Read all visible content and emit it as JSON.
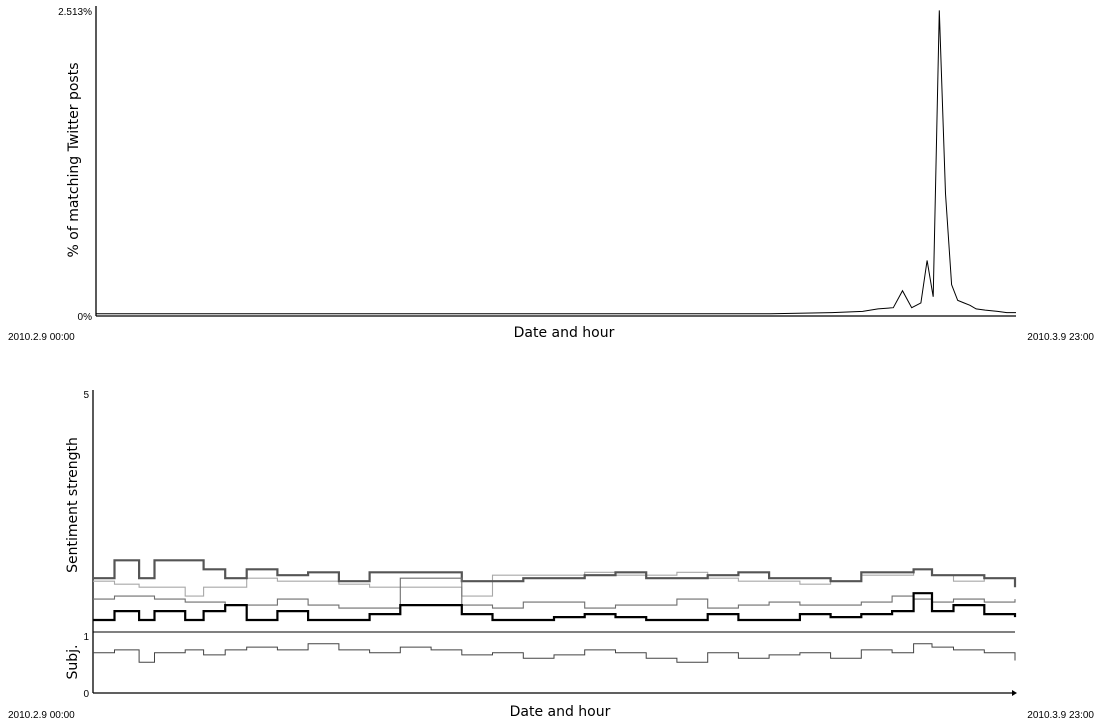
{
  "chart_data": [
    {
      "type": "line",
      "xlabel": "Date and hour",
      "ylabel": "% of matching Twitter posts",
      "x_start_label": "2010.2.9 00:00",
      "x_end_label": "2010.3.9 23:00",
      "y_tick_labels": [
        "0%",
        "2.513%"
      ],
      "ylim": [
        0,
        2.513
      ],
      "grid": false,
      "x": [
        0.0,
        2.0,
        4.0,
        6.0,
        8.0,
        10.0,
        12.0,
        14.0,
        16.0,
        18.0,
        20.0,
        22.0,
        24.0,
        25.0,
        25.5,
        26.0,
        26.3,
        26.6,
        26.9,
        27.1,
        27.3,
        27.5,
        27.7,
        27.9,
        28.1,
        28.3,
        28.5,
        28.7,
        29.0,
        29.4,
        29.7,
        30.0
      ],
      "series": [
        {
          "values": [
            0.01,
            0.01,
            0.01,
            0.01,
            0.01,
            0.01,
            0.01,
            0.01,
            0.01,
            0.01,
            0.01,
            0.01,
            0.02,
            0.03,
            0.05,
            0.06,
            0.2,
            0.06,
            0.1,
            0.45,
            0.15,
            2.51,
            1.0,
            0.25,
            0.12,
            0.1,
            0.08,
            0.05,
            0.04,
            0.03,
            0.02,
            0.02
          ]
        }
      ]
    },
    {
      "type": "line",
      "xlabel": "Date and hour",
      "ylabel": "Sentiment strength",
      "ylabel_sub": "Subj.",
      "x_start_label": "2010.2.9 00:00",
      "x_end_label": "2010.3.9 23:00",
      "y_tick_labels": [
        "1",
        "5"
      ],
      "y_tick_labels_sub": [
        "1",
        "0"
      ],
      "ylim": [
        1,
        5
      ],
      "ylim_sub": [
        0,
        1
      ],
      "grid": false,
      "x": [
        0.0,
        0.7,
        1.5,
        2.0,
        3.0,
        3.6,
        4.3,
        5.0,
        6.0,
        7.0,
        8.0,
        9.0,
        10.0,
        11.0,
        12.0,
        13.0,
        14.0,
        15.0,
        16.0,
        17.0,
        18.0,
        19.0,
        20.0,
        21.0,
        22.0,
        23.0,
        24.0,
        25.0,
        26.0,
        26.7,
        27.3,
        28.0,
        29.0,
        30.0
      ],
      "series": [
        {
          "name": "",
          "values": [
            1.85,
            1.8,
            1.75,
            1.75,
            1.6,
            1.75,
            1.75,
            1.9,
            1.85,
            1.85,
            1.8,
            1.75,
            1.75,
            1.75,
            1.6,
            1.95,
            1.95,
            1.95,
            2.0,
            1.95,
            1.95,
            2.0,
            1.9,
            1.85,
            1.85,
            1.8,
            1.85,
            1.95,
            1.95,
            2.05,
            1.95,
            1.85,
            1.9,
            1.85
          ]
        },
        {
          "name": "",
          "values": [
            1.9,
            2.2,
            1.9,
            2.2,
            2.2,
            2.05,
            1.9,
            2.05,
            1.95,
            2.0,
            1.85,
            2.0,
            2.0,
            2.0,
            1.85,
            1.85,
            1.9,
            1.9,
            1.95,
            2.0,
            1.9,
            1.9,
            1.95,
            2.0,
            1.9,
            1.9,
            1.85,
            2.0,
            2.0,
            2.05,
            1.95,
            1.95,
            1.9,
            1.75
          ]
        },
        {
          "name": "",
          "values": [
            1.55,
            1.6,
            1.6,
            1.55,
            1.5,
            1.5,
            1.45,
            1.45,
            1.55,
            1.45,
            1.4,
            1.4,
            1.9,
            1.9,
            1.45,
            1.4,
            1.5,
            1.5,
            1.4,
            1.45,
            1.45,
            1.55,
            1.4,
            1.45,
            1.5,
            1.45,
            1.45,
            1.5,
            1.6,
            1.55,
            1.5,
            1.55,
            1.5,
            1.55
          ]
        },
        {
          "name": "",
          "values": [
            1.2,
            1.35,
            1.2,
            1.35,
            1.2,
            1.35,
            1.45,
            1.2,
            1.35,
            1.2,
            1.2,
            1.3,
            1.45,
            1.45,
            1.3,
            1.2,
            1.2,
            1.25,
            1.3,
            1.25,
            1.2,
            1.2,
            1.3,
            1.2,
            1.2,
            1.3,
            1.25,
            1.3,
            1.35,
            1.65,
            1.35,
            1.45,
            1.3,
            1.25
          ]
        },
        {
          "name": "Subj.",
          "values": [
            0.72,
            0.77,
            0.55,
            0.72,
            0.77,
            0.68,
            0.77,
            0.82,
            0.77,
            0.88,
            0.77,
            0.72,
            0.82,
            0.77,
            0.68,
            0.72,
            0.62,
            0.68,
            0.77,
            0.72,
            0.62,
            0.55,
            0.72,
            0.62,
            0.68,
            0.72,
            0.62,
            0.77,
            0.72,
            0.88,
            0.82,
            0.77,
            0.72,
            0.58
          ]
        }
      ]
    }
  ]
}
